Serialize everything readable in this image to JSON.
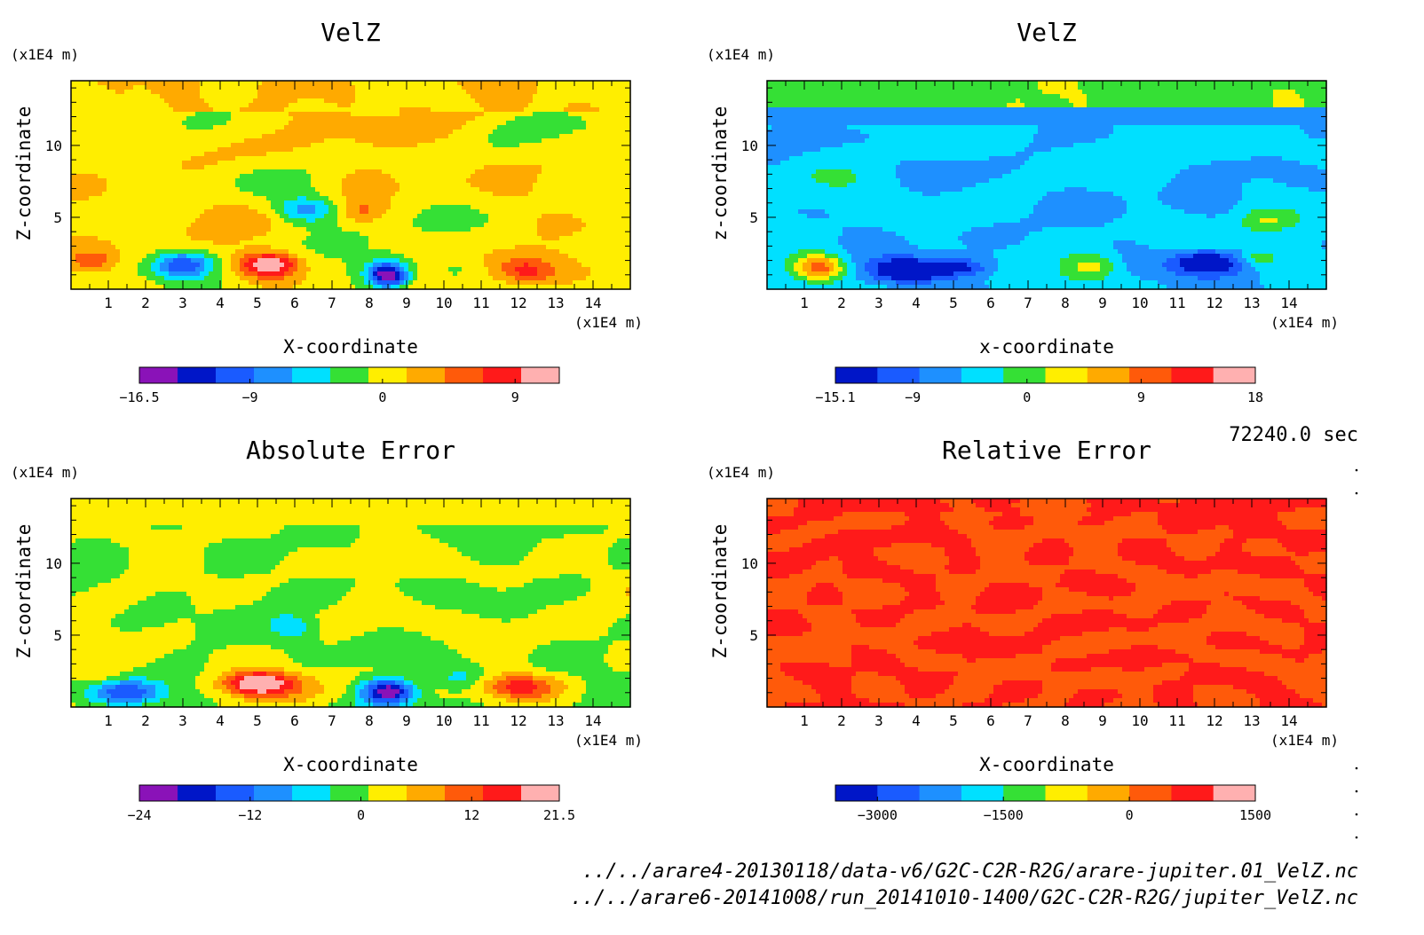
{
  "time_label": "72240.0 sec",
  "file_paths": [
    "../../arare4-20130118/data-v6/G2C-C2R-R2G/arare-jupiter.01_VelZ.nc",
    "../../arare6-20141008/run_20141010-1400/G2C-C2R-R2G/jupiter_VelZ.nc"
  ],
  "chart_data": [
    {
      "type": "heatmap",
      "title": "VelZ",
      "xlabel": "X-coordinate",
      "ylabel": "Z-coordinate",
      "x_unit": "(x1E4 m)",
      "y_unit": "(x1E4 m)",
      "xlim": [
        0,
        15
      ],
      "ylim": [
        0,
        14.5
      ],
      "xticks": [
        "1",
        "2",
        "3",
        "4",
        "5",
        "6",
        "7",
        "8",
        "9",
        "10",
        "11",
        "12",
        "13",
        "14"
      ],
      "yticks": [
        "5",
        "10"
      ],
      "colorbar": {
        "range": [
          -16.5,
          12
        ],
        "tick_labels": [
          "-16.5",
          "-9",
          "0",
          "9"
        ],
        "colors": [
          "#8a12b8",
          "#0016c8",
          "#1a5bff",
          "#1e90ff",
          "#00e0ff",
          "#35e035",
          "#ffee00",
          "#ffaa00",
          "#ff5a0a",
          "#ff1a1a",
          "#ffb0b0"
        ]
      },
      "features": [
        {
          "x": 5.3,
          "z": 1.7,
          "value": 12,
          "kind": "max"
        },
        {
          "x": 3.0,
          "z": 1.7,
          "value": -11,
          "kind": "min"
        },
        {
          "x": 8.5,
          "z": 1.0,
          "value": -16.5,
          "kind": "min"
        },
        {
          "x": 12.2,
          "z": 1.3,
          "value": 7,
          "kind": "max"
        },
        {
          "x": 6.3,
          "z": 5.5,
          "value": -8,
          "kind": "min"
        }
      ]
    },
    {
      "type": "heatmap",
      "title": "VelZ",
      "xlabel": "x-coordinate",
      "ylabel": "z-coordinate",
      "x_unit": "(x1E4 m)",
      "y_unit": "(x1E4 m)",
      "xlim": [
        0,
        15
      ],
      "ylim": [
        0,
        14.5
      ],
      "xticks": [
        "1",
        "2",
        "3",
        "4",
        "5",
        "6",
        "7",
        "8",
        "9",
        "10",
        "11",
        "12",
        "13",
        "14"
      ],
      "yticks": [
        "5",
        "10"
      ],
      "colorbar": {
        "range": [
          -15.1,
          18
        ],
        "tick_labels": [
          "-15.1",
          "-9",
          "0",
          "9",
          "18"
        ],
        "colors": [
          "#0016c8",
          "#1a5bff",
          "#1e90ff",
          "#00e0ff",
          "#35e035",
          "#ffee00",
          "#ffaa00",
          "#ff5a0a",
          "#ff1a1a",
          "#ffb0b0"
        ]
      },
      "features": [
        {
          "x": 1.4,
          "z": 1.5,
          "value": 16,
          "kind": "max"
        },
        {
          "x": 3.8,
          "z": 1.3,
          "value": -15.1,
          "kind": "min"
        },
        {
          "x": 11.8,
          "z": 1.9,
          "value": -13,
          "kind": "min"
        },
        {
          "x": 8.7,
          "z": 1.6,
          "value": 8,
          "kind": "max"
        }
      ]
    },
    {
      "type": "heatmap",
      "title": "Absolute Error",
      "xlabel": "X-coordinate",
      "ylabel": "Z-coordinate",
      "x_unit": "(x1E4 m)",
      "y_unit": "(x1E4 m)",
      "xlim": [
        0,
        15
      ],
      "ylim": [
        0,
        14.5
      ],
      "xticks": [
        "1",
        "2",
        "3",
        "4",
        "5",
        "6",
        "7",
        "8",
        "9",
        "10",
        "11",
        "12",
        "13",
        "14"
      ],
      "yticks": [
        "5",
        "10"
      ],
      "colorbar": {
        "range": [
          -24,
          21.5
        ],
        "tick_labels": [
          "-24",
          "-12",
          "0",
          "12",
          "21.5"
        ],
        "colors": [
          "#8a12b8",
          "#0016c8",
          "#1a5bff",
          "#1e90ff",
          "#00e0ff",
          "#35e035",
          "#ffee00",
          "#ffaa00",
          "#ff5a0a",
          "#ff1a1a",
          "#ffb0b0"
        ]
      },
      "features": [
        {
          "x": 5.0,
          "z": 1.6,
          "value": 21.5,
          "kind": "max"
        },
        {
          "x": 1.5,
          "z": 1.0,
          "value": -15,
          "kind": "min"
        },
        {
          "x": 8.5,
          "z": 1.1,
          "value": -24,
          "kind": "min"
        },
        {
          "x": 12.0,
          "z": 1.4,
          "value": 15,
          "kind": "max"
        }
      ]
    },
    {
      "type": "heatmap",
      "title": "Relative Error",
      "xlabel": "X-coordinate",
      "ylabel": "Z-coordinate",
      "x_unit": "(x1E4 m)",
      "y_unit": "(x1E4 m)",
      "xlim": [
        0,
        15
      ],
      "ylim": [
        0,
        14.5
      ],
      "xticks": [
        "1",
        "2",
        "3",
        "4",
        "5",
        "6",
        "7",
        "8",
        "9",
        "10",
        "11",
        "12",
        "13",
        "14"
      ],
      "yticks": [
        "5",
        "10"
      ],
      "colorbar": {
        "range": [
          -3500,
          1500
        ],
        "tick_labels": [
          "-3000",
          "-1500",
          "0",
          "1500"
        ],
        "colors": [
          "#0016c8",
          "#1a5bff",
          "#1e90ff",
          "#00e0ff",
          "#35e035",
          "#ffee00",
          "#ffaa00",
          "#ff5a0a",
          "#ff1a1a",
          "#ffb0b0"
        ]
      },
      "features": []
    }
  ]
}
